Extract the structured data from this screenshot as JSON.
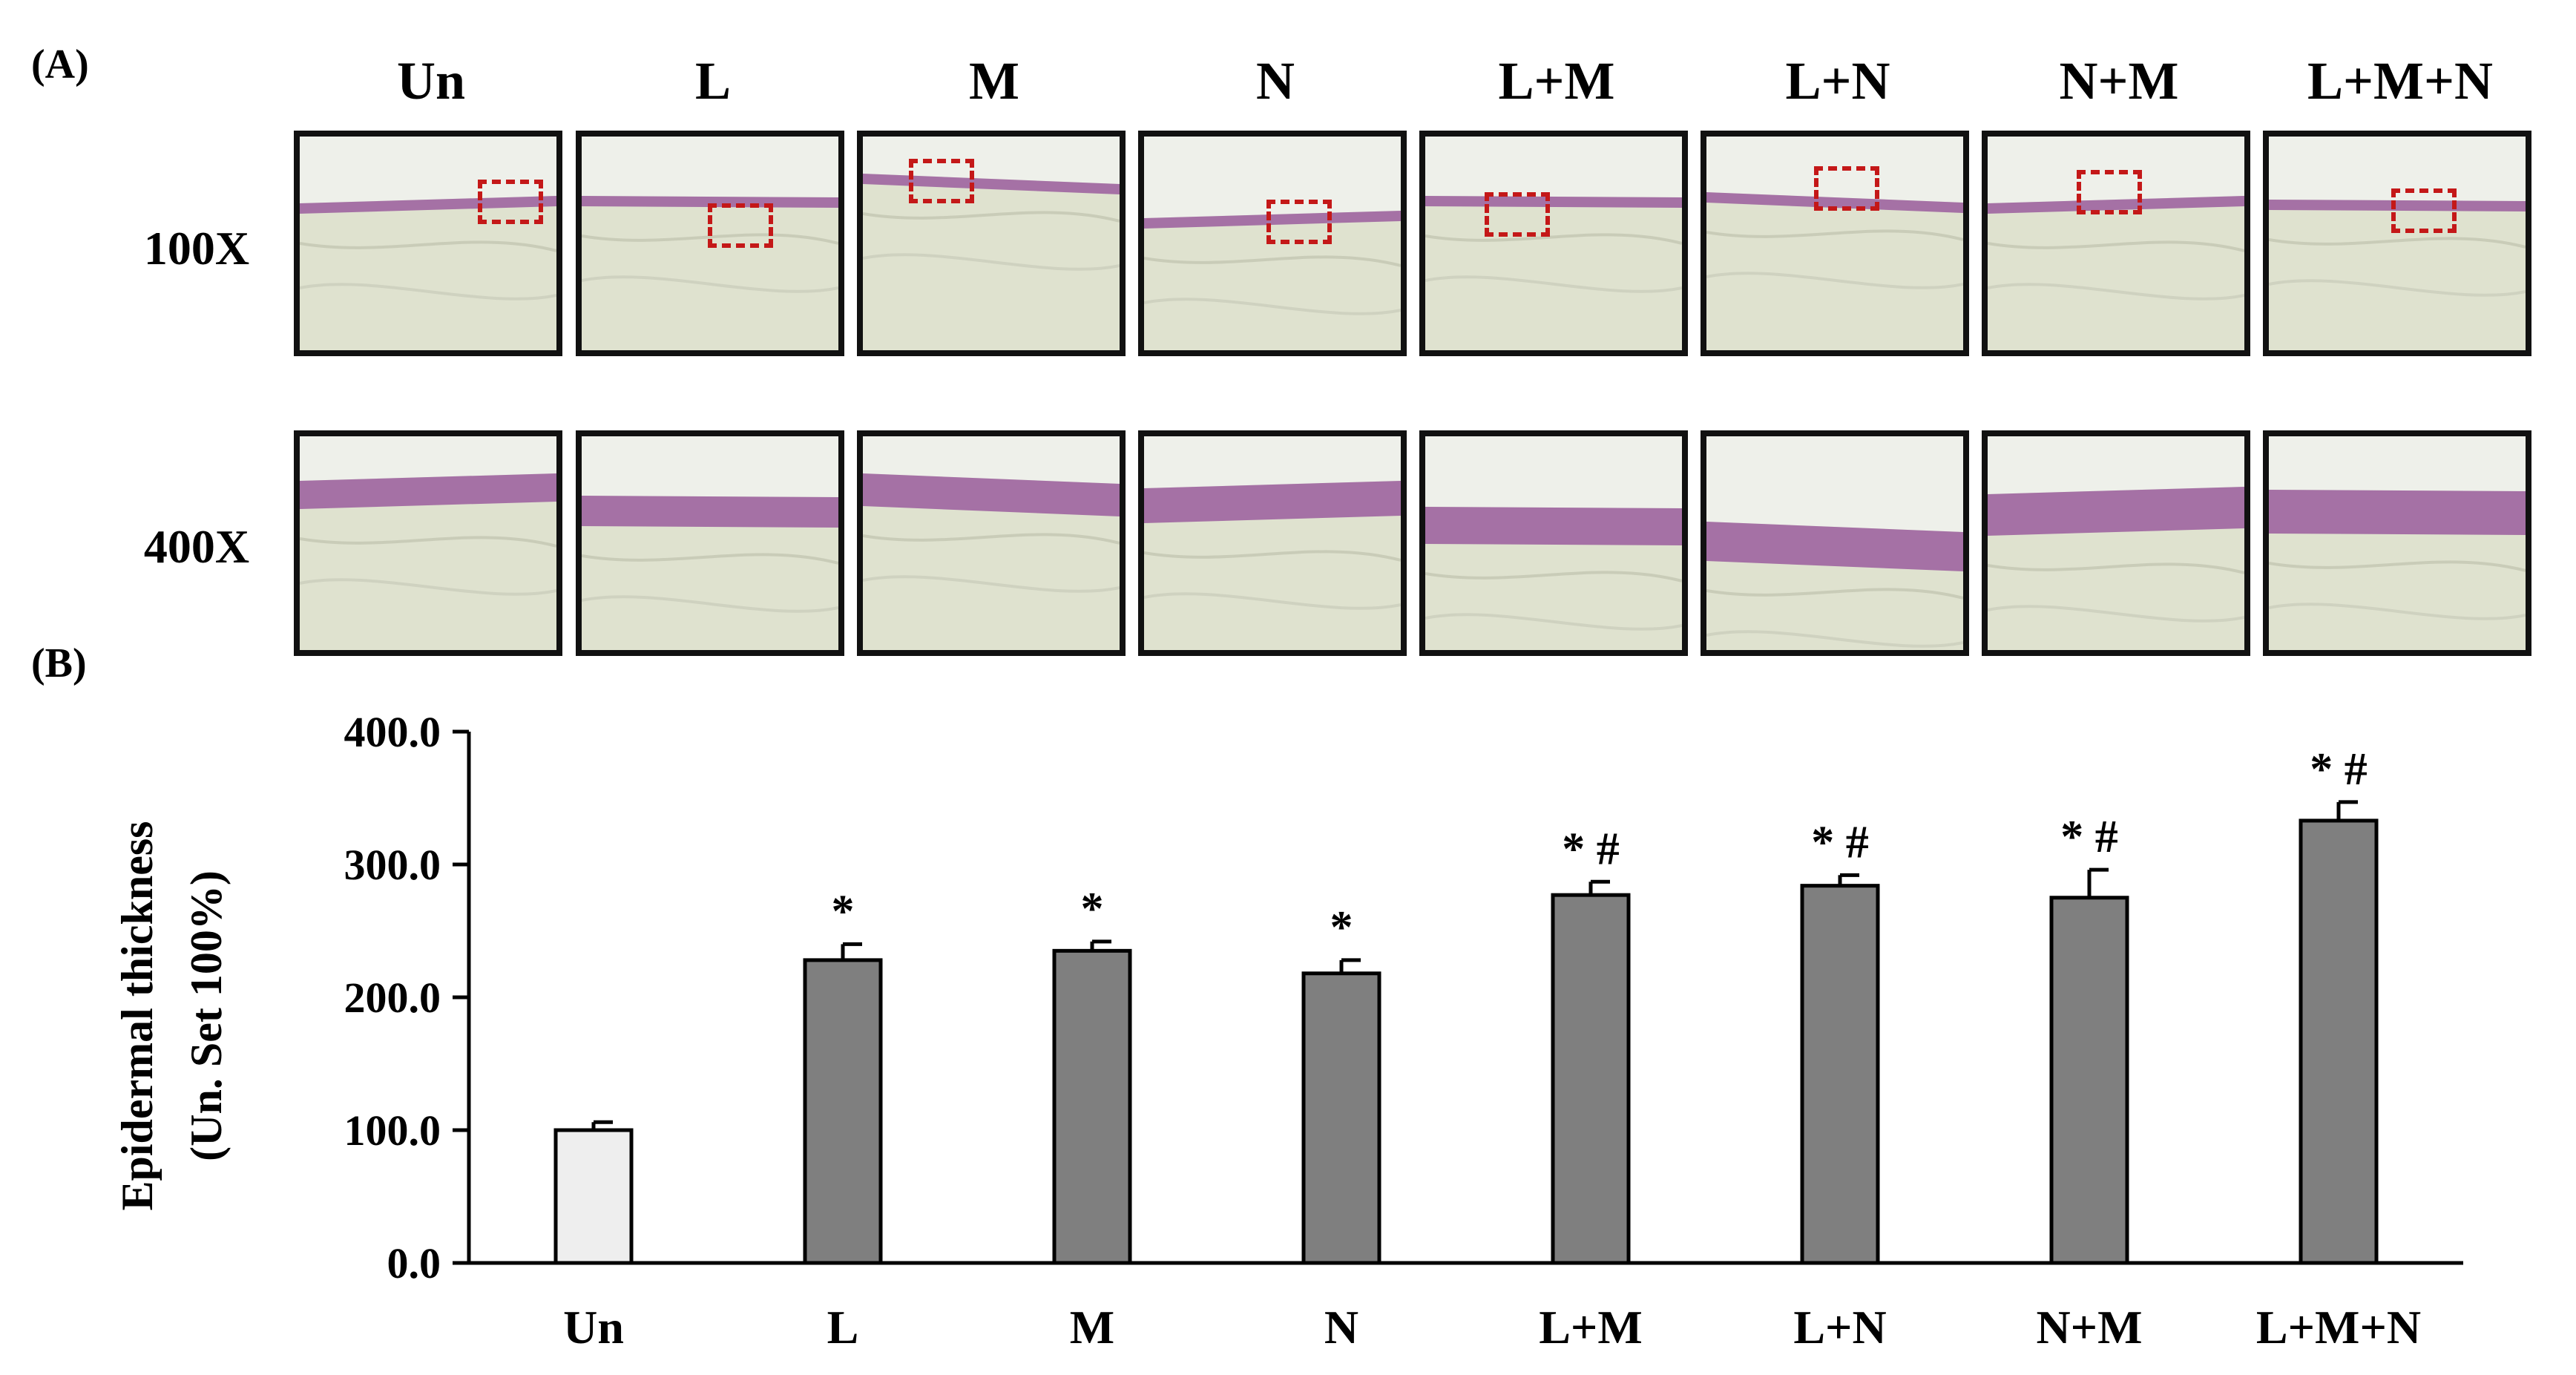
{
  "panel_a_label": "(A)",
  "panel_b_label": "(B)",
  "histology": {
    "columns": [
      "Un",
      "L",
      "M",
      "N",
      "L+M",
      "L+N",
      "N+M",
      "L+M+N"
    ],
    "rows": [
      "100X",
      "400X"
    ],
    "colors": {
      "dermis": "#dfe2cf",
      "epidermis": "#9b5d9e",
      "background": "#eef0ea",
      "roi_box": "#c41818"
    }
  },
  "chart_data": {
    "type": "bar",
    "categories": [
      "Un",
      "L",
      "M",
      "N",
      "L+M",
      "L+N",
      "N+M",
      "L+M+N"
    ],
    "values": [
      100,
      228,
      235,
      218,
      277,
      284,
      275,
      333
    ],
    "errors": [
      6,
      12,
      7,
      10,
      10,
      8,
      21,
      14
    ],
    "annotations": [
      "",
      "*",
      "*",
      "*",
      "*#",
      "*#",
      "*#",
      "*#"
    ],
    "ylabel_line1": "Epidermal thickness",
    "ylabel_line2": "(Un. Set 100%)",
    "ylim": [
      0,
      400
    ],
    "yticks": [
      "0.0",
      "100.0",
      "200.0",
      "300.0",
      "400.0"
    ],
    "ytick_values": [
      0,
      100,
      200,
      300,
      400
    ],
    "grid": false,
    "bar_colors": {
      "control": "#eeeeee",
      "treated": "#7f7f7f"
    }
  }
}
